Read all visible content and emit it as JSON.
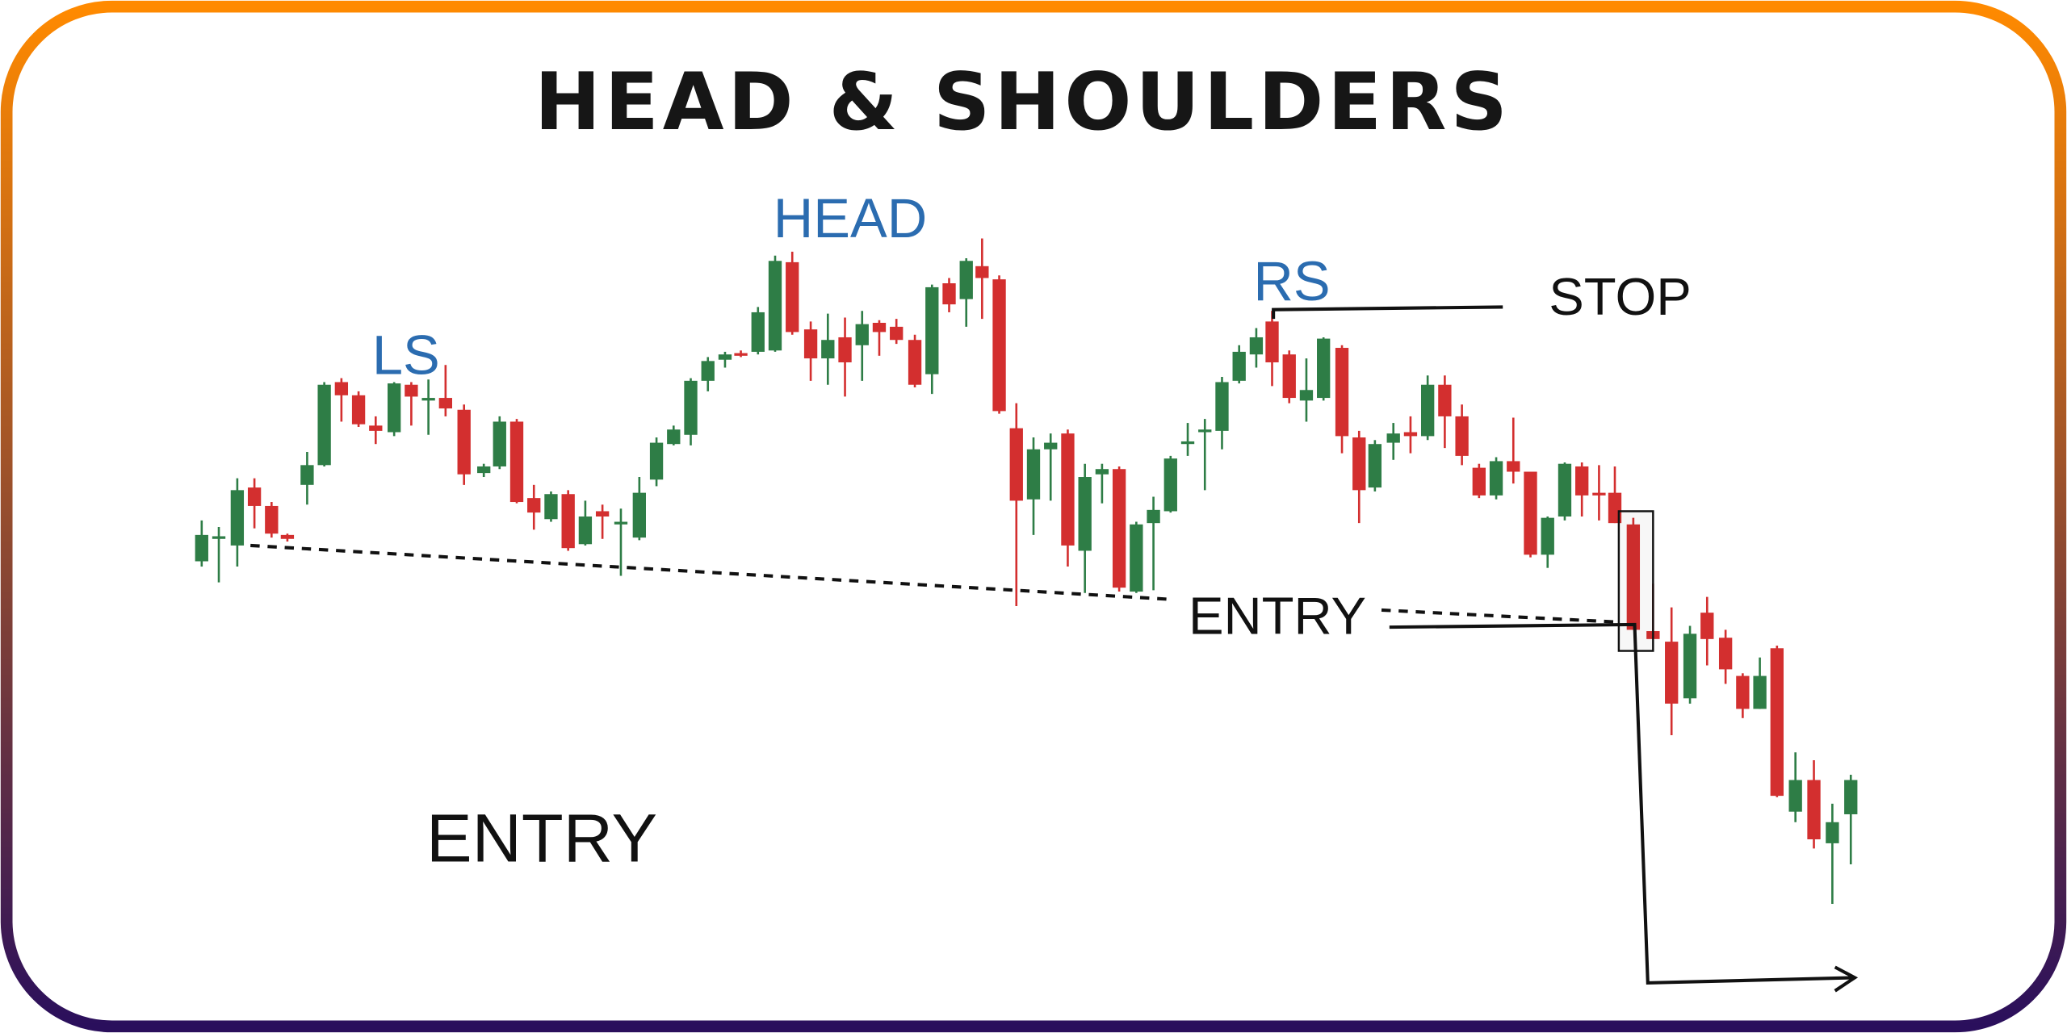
{
  "title": "HEAD & SHOULDERS",
  "labels": {
    "left_shoulder": "LS",
    "head": "HEAD",
    "right_shoulder": "RS",
    "stop": "STOP",
    "entry_line": "ENTRY",
    "entry_caption": "ENTRY"
  },
  "colors": {
    "bullish": "#2e7d46",
    "bearish": "#d32f2f",
    "label_blue": "#2b6cb0",
    "border_top": "#ff8a00",
    "border_bottom": "#2a0f5c"
  }
}
